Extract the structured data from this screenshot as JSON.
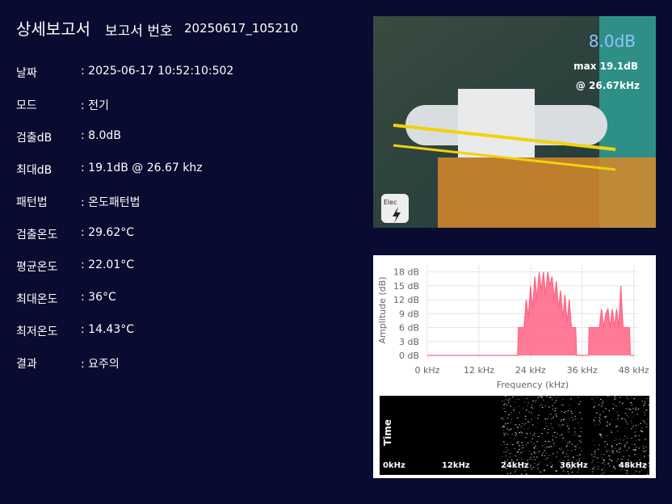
{
  "header": {
    "title": "상세보고서",
    "number_label": "보고서 번호",
    "number": "20250617_105210"
  },
  "fields": [
    {
      "label": "날짜",
      "value": ": 2025-06-17 10:52:10:502"
    },
    {
      "label": "모드",
      "value": ": 전기"
    },
    {
      "label": "검출dB",
      "value": ": 8.0dB"
    },
    {
      "label": "최대dB",
      "value": ": 19.1dB @ 26.67 khz"
    },
    {
      "label": "패턴법",
      "value": ": 온도패턴법"
    },
    {
      "label": "검출온도",
      "value": ": 29.62°C"
    },
    {
      "label": "평균온도",
      "value": ": 22.01°C"
    },
    {
      "label": "최대온도",
      "value": ": 36°C"
    },
    {
      "label": "최저온도",
      "value": ": 14.43°C"
    },
    {
      "label": "결과",
      "value": ": 요주의"
    }
  ],
  "photo": {
    "detected": "8.0dB",
    "max": "max 19.1dB",
    "freq": "@ 26.67kHz",
    "badge": "Elec"
  },
  "chart_data": {
    "type": "area",
    "color": "#ff6384",
    "x_label": "Frequency (kHz)",
    "y_label": "Amplitude (dB)",
    "x": [
      0,
      21,
      21.2,
      22.5,
      23,
      23.5,
      24,
      24.5,
      25,
      25.5,
      26,
      26.5,
      27,
      27.5,
      28,
      28.5,
      29,
      29.5,
      30,
      30.5,
      31,
      31.5,
      32,
      32.5,
      33,
      33.5,
      34,
      34.5,
      34.7,
      37.5,
      37.6,
      39,
      40,
      40.5,
      41,
      41.5,
      42,
      42.5,
      43,
      43.5,
      44,
      44.5,
      45,
      45.5,
      46,
      46.5,
      47,
      47.2,
      48
    ],
    "values": [
      0,
      0,
      6,
      6,
      12,
      8,
      15,
      10,
      17,
      12,
      18,
      14,
      18,
      13,
      18,
      15,
      17,
      12,
      16,
      10,
      14,
      8,
      13,
      7,
      12,
      6,
      6,
      6,
      0,
      0,
      6,
      6,
      6,
      10,
      6,
      9,
      10,
      6,
      10,
      6,
      10,
      6,
      15,
      6,
      6,
      6,
      6,
      0,
      0
    ],
    "xlim": [
      0,
      49
    ],
    "ylim": [
      0,
      19.5
    ],
    "xticks": [
      {
        "value": 0,
        "label": "0 kHz"
      },
      {
        "value": 12,
        "label": "12 kHz"
      },
      {
        "value": 24,
        "label": "24 kHz"
      },
      {
        "value": 36,
        "label": "36 kHz"
      },
      {
        "value": 48,
        "label": "48 kHz"
      }
    ],
    "yticks": [
      {
        "value": 0,
        "label": "0 dB"
      },
      {
        "value": 3,
        "label": "3 dB"
      },
      {
        "value": 6,
        "label": "6 dB"
      },
      {
        "value": 9,
        "label": "9 dB"
      },
      {
        "value": 12,
        "label": "12 dB"
      },
      {
        "value": 15,
        "label": "15 dB"
      },
      {
        "value": 18,
        "label": "18 dB"
      }
    ],
    "grid": true
  },
  "spectrogram": {
    "axis": "Time",
    "ticks": [
      "0kHz",
      "12kHz",
      "24kHz",
      "36kHz",
      "48kHz"
    ]
  }
}
